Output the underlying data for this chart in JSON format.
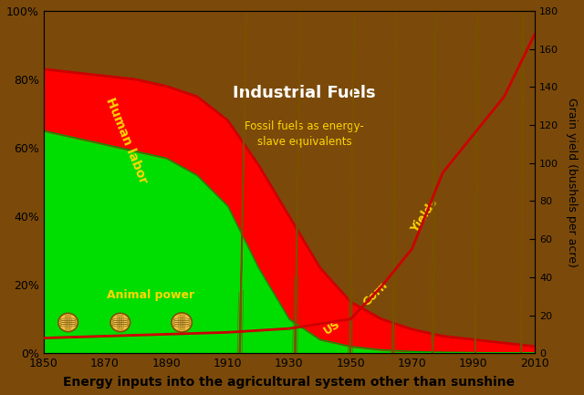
{
  "background_color": "#7B4A0A",
  "x_start": 1850,
  "x_end": 2010,
  "y_left_min": 0,
  "y_left_max": 1.0,
  "y_right_min": 0,
  "y_right_max": 180,
  "xlabel": "Energy inputs into the agricultural system other than sunshine",
  "ylabel_right": "Grain yield (bushels per acre)",
  "xticks": [
    1850,
    1870,
    1890,
    1910,
    1930,
    1950,
    1970,
    1990,
    2010
  ],
  "yticks_left": [
    0.0,
    0.2,
    0.4,
    0.6,
    0.8,
    1.0
  ],
  "ytick_labels_left": [
    "0%",
    "20%",
    "40%",
    "60%",
    "80%",
    "100%"
  ],
  "yticks_right": [
    0,
    20,
    40,
    60,
    80,
    100,
    120,
    140,
    160,
    180
  ],
  "animal_power_x": [
    1850,
    1860,
    1870,
    1880,
    1890,
    1900,
    1910,
    1920,
    1930,
    1940,
    1950,
    1960,
    1970,
    1980,
    1990,
    2000,
    2010
  ],
  "animal_power_y": [
    0.65,
    0.63,
    0.61,
    0.59,
    0.57,
    0.52,
    0.43,
    0.25,
    0.1,
    0.04,
    0.02,
    0.01,
    0.005,
    0.003,
    0.002,
    0.001,
    0.001
  ],
  "human_labor_x": [
    1850,
    1860,
    1870,
    1880,
    1890,
    1900,
    1910,
    1920,
    1930,
    1940,
    1950,
    1960,
    1970,
    1980,
    1990,
    2000,
    2010
  ],
  "human_labor_y": [
    0.83,
    0.82,
    0.81,
    0.8,
    0.78,
    0.75,
    0.68,
    0.55,
    0.4,
    0.25,
    0.15,
    0.1,
    0.07,
    0.05,
    0.04,
    0.03,
    0.02
  ],
  "animal_color": "#00dd00",
  "human_color": "#ff0000",
  "industrial_fuels_label": "Industrial Fuels",
  "fossil_fuels_label": "Fossil fuels as energy-\nslave equivalents",
  "human_labor_label": "Human labor",
  "animal_power_label": "Animal power",
  "corn_cob_positions_x": [
    1858,
    1875,
    1895,
    1914,
    1932,
    1950,
    1964,
    1977,
    1991,
    2006
  ],
  "corn_cob_positions_y": [
    0.09,
    0.09,
    0.09,
    0.045,
    0.055,
    0.11,
    0.2,
    0.36,
    0.6,
    0.9
  ],
  "corn_cob_angles": [
    0,
    0,
    0,
    25,
    30,
    38,
    45,
    52,
    58,
    63
  ],
  "corn_cob_scales": [
    0.75,
    0.75,
    0.78,
    0.8,
    0.85,
    0.9,
    0.95,
    1.02,
    1.1,
    1.18
  ]
}
